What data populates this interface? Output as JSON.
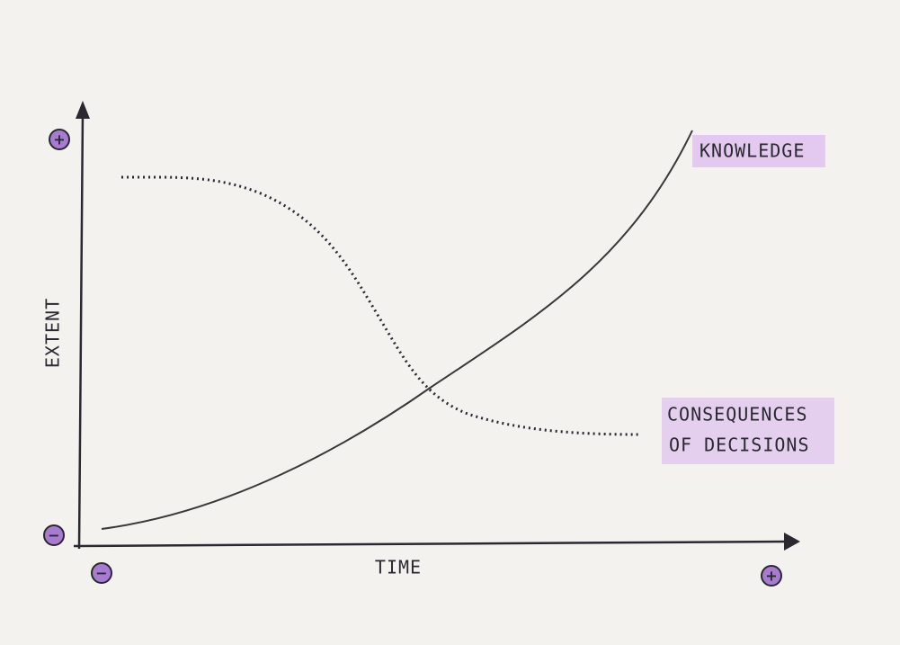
{
  "y_axis": {
    "label": "EXTENT",
    "max_symbol": "+",
    "min_symbol": "−"
  },
  "x_axis": {
    "label": "TIME",
    "min_symbol": "−",
    "max_symbol": "+"
  },
  "curves": [
    {
      "label": "KNOWLEDGE"
    },
    {
      "label_lines": [
        "CONSEQUENCES",
        "OF DECISIONS"
      ]
    }
  ]
}
